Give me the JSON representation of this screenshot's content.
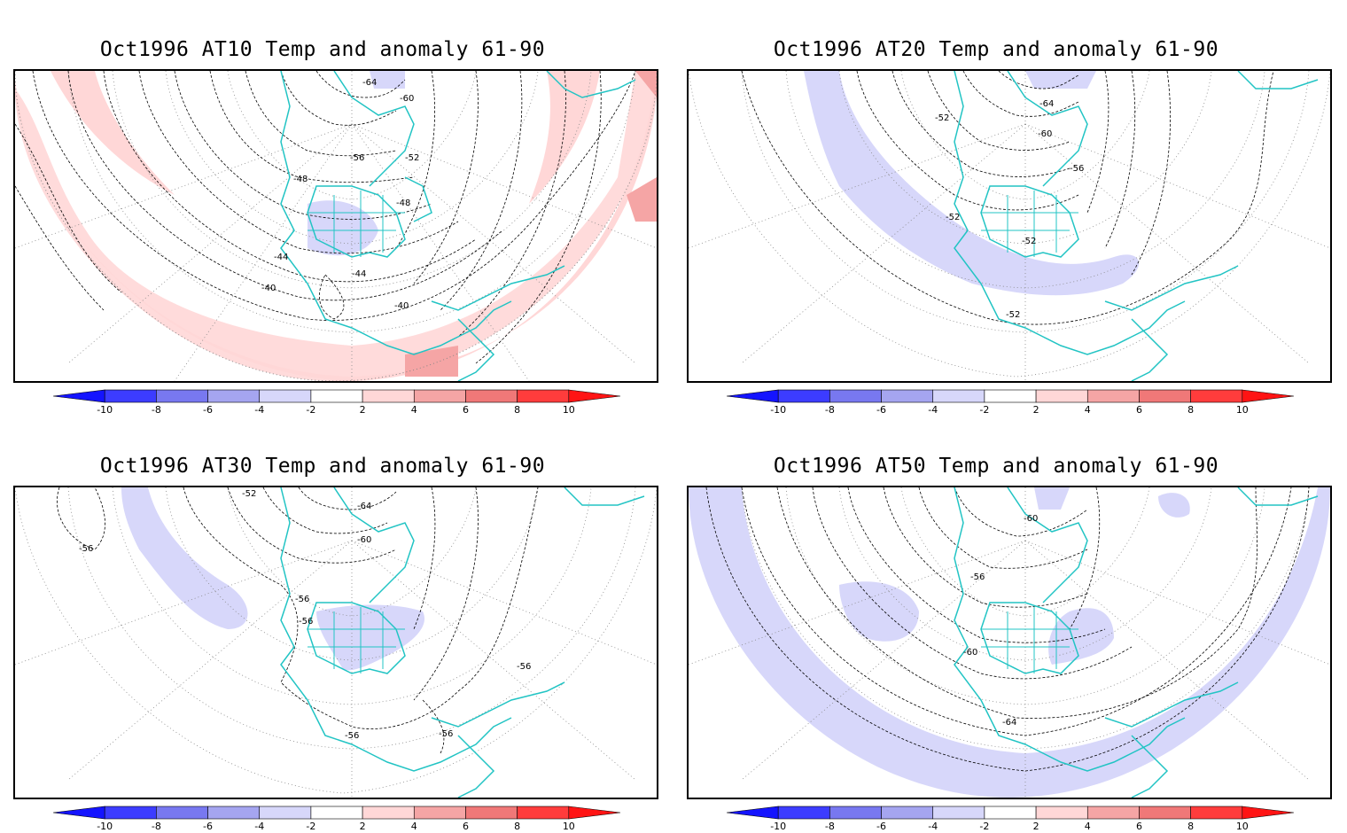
{
  "panels": [
    {
      "title": "Oct1996 AT10 Temp and anomaly 61-90",
      "contour_labels": [
        "-64",
        "-60",
        "-56",
        "-52",
        "-48",
        "-48",
        "-44",
        "-44",
        "-40",
        "-40"
      ]
    },
    {
      "title": "Oct1996 AT20 Temp and anomaly 61-90",
      "contour_labels": [
        "-64",
        "-52",
        "-60",
        "-56",
        "-52",
        "-52",
        "-52"
      ]
    },
    {
      "title": "Oct1996 AT30 Temp and anomaly 61-90",
      "contour_labels": [
        "-52",
        "-64",
        "-56",
        "-60",
        "-56",
        "-56",
        "-56",
        "-56",
        "-56"
      ]
    },
    {
      "title": "Oct1996 AT50 Temp and anomaly 61-90",
      "contour_labels": [
        "-60",
        "-56",
        "-60",
        "-64"
      ]
    }
  ],
  "colorbar": {
    "ticks": [
      "-10",
      "-8",
      "-6",
      "-4",
      "-2",
      "2",
      "4",
      "6",
      "8",
      "10"
    ],
    "colors": [
      "#1414ff",
      "#3c3cff",
      "#7878f0",
      "#a5a5f0",
      "#d7d7fa",
      "#ffffff",
      "#ffd7d7",
      "#f5a5a5",
      "#f07878",
      "#ff3c3c",
      "#ff1414"
    ]
  },
  "colors": {
    "coastline": "#22c4c4",
    "contour": "#000000",
    "grid": "#888888"
  }
}
